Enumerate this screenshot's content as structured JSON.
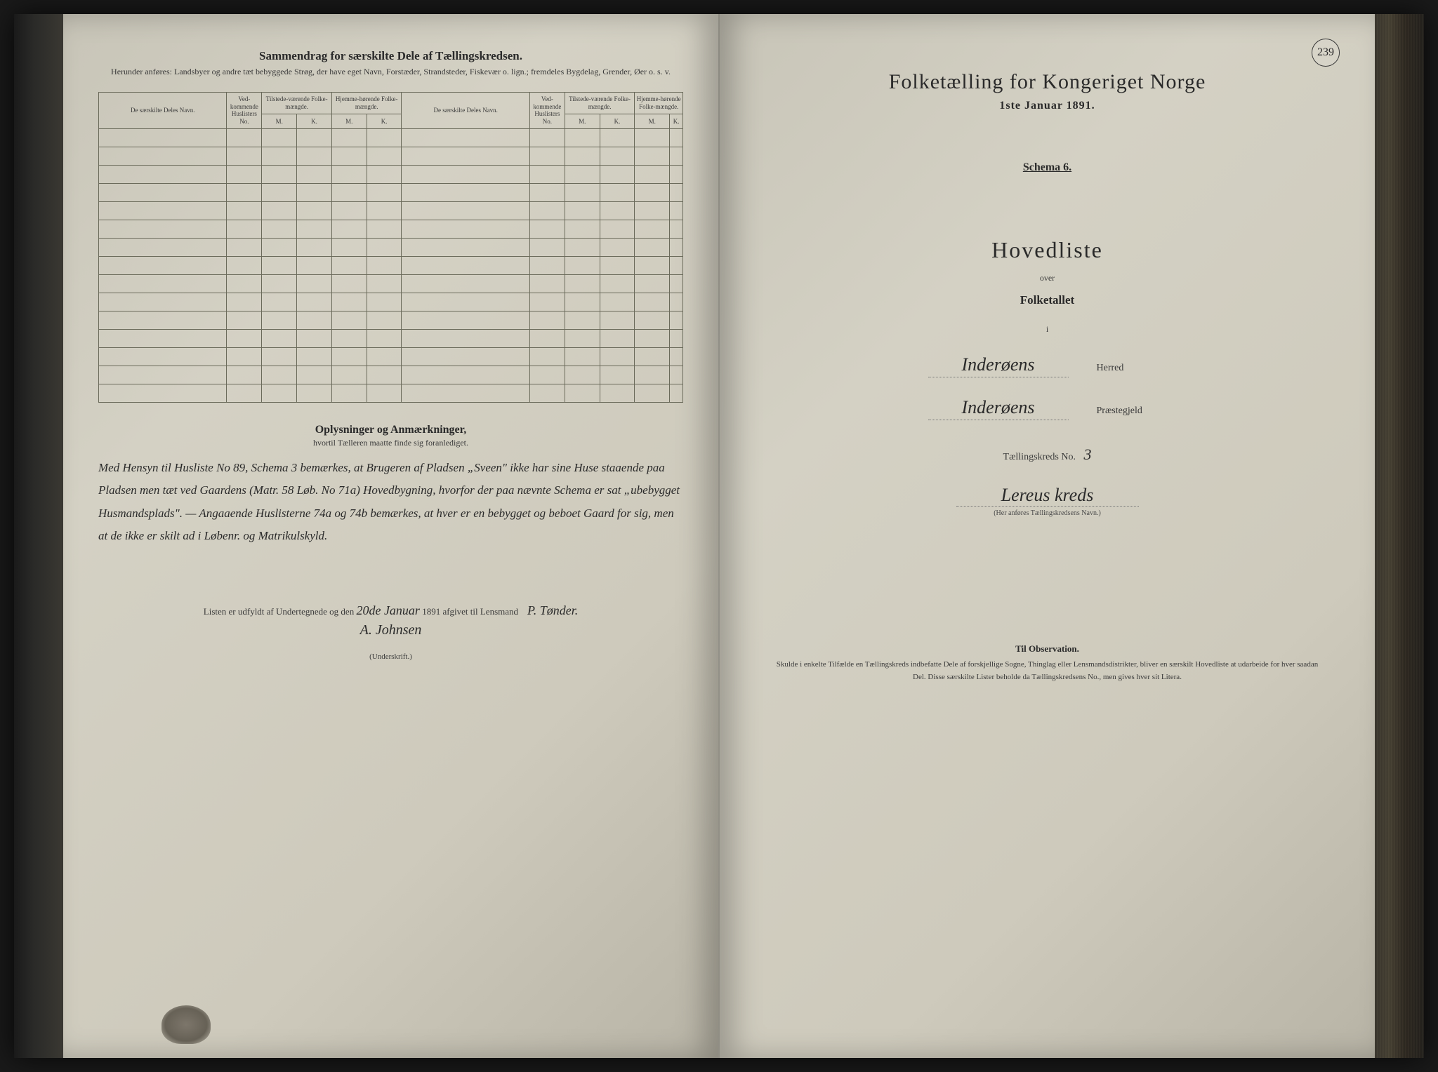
{
  "page_number_stamp": "239",
  "left": {
    "title": "Sammendrag for særskilte Dele af Tællingskredsen.",
    "subtitle": "Herunder anføres: Landsbyer og andre tæt bebyggede Strøg, der have eget Navn, Forstæder, Strandsteder, Fiskevær o. lign.; fremdeles Bygdelag, Grender, Øer o. s. v.",
    "table": {
      "headers": {
        "name": "De særskilte Deles Navn.",
        "huslister": "Ved-kommende Huslisters No.",
        "tilstede": "Tilstede-værende Folke-mængde.",
        "hjemme": "Hjemme-hørende Folke-mængde.",
        "m": "M.",
        "k": "K."
      },
      "row_count": 15
    },
    "remarks_title": "Oplysninger og Anmærkninger,",
    "remarks_sub": "hvortil Tælleren maatte finde sig foranlediget.",
    "remarks_body": "Med Hensyn til Husliste No 89, Schema 3 bemærkes, at Brugeren af Pladsen „Sveen\" ikke har sine Huse staaende paa Pladsen men tæt ved Gaardens (Matr. 58 Løb. No 71a) Hovedbygning, hvorfor der paa nævnte Schema er sat „ubebygget Husmandsplads\". — Angaaende Huslisterne 74a og 74b bemærkes, at hver er en bebygget og beboet Gaard for sig, men at de ikke er skilt ad i Løbenr. og Matrikulskyld.",
    "sig_prefix": "Listen er udfyldt af Undertegnede og den",
    "sig_date": "20de Januar",
    "sig_year": "1891 afgivet til Lensmand",
    "sig_name1": "P. Tønder.",
    "sig_name2": "A. Johnsen",
    "sig_caption": "(Underskrift.)"
  },
  "right": {
    "census_title": "Folketælling for Kongeriget Norge",
    "census_date": "1ste Januar 1891.",
    "schema": "Schema 6.",
    "hovedliste": "Hovedliste",
    "over": "over",
    "folketallet": "Folketallet",
    "i": "i",
    "herred_value": "Inderøens",
    "herred_label": "Herred",
    "praestegjeld_value": "Inderøens",
    "praestegjeld_label": "Præstegjeld",
    "kreds_label": "Tællingskreds No.",
    "kreds_no": "3",
    "kreds_name": "Lereus kreds",
    "kreds_caption": "(Her anføres Tællingskredsens Navn.)",
    "obs_title": "Til Observation.",
    "obs_body": "Skulde i enkelte Tilfælde en Tællingskreds indbefatte Dele af forskjellige Sogne, Thinglag eller Lensmandsdistrikter, bliver en særskilt Hovedliste at udarbeide for hver saadan Del. Disse særskilte Lister beholde da Tællingskredsens No., men gives hver sit Litera."
  },
  "colors": {
    "paper": "#cecabc",
    "ink": "#2a2a2a",
    "rule": "#6a6a5a"
  }
}
